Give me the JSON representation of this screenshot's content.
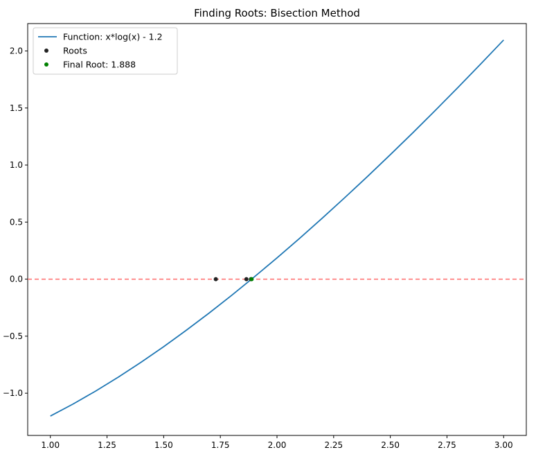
{
  "chart_data": {
    "type": "line",
    "title": "Finding Roots: Bisection Method",
    "xlabel": "",
    "ylabel": "",
    "xlim": [
      0.9,
      3.1
    ],
    "ylim": [
      -1.37,
      2.24
    ],
    "xticks": [
      1.0,
      1.25,
      1.5,
      1.75,
      2.0,
      2.25,
      2.5,
      2.75,
      3.0
    ],
    "xtick_labels": [
      "1.00",
      "1.25",
      "1.50",
      "1.75",
      "2.00",
      "2.25",
      "2.50",
      "2.75",
      "3.00"
    ],
    "yticks": [
      -1.0,
      -0.5,
      0.0,
      0.5,
      1.0,
      1.5,
      2.0
    ],
    "ytick_labels": [
      "−1.0",
      "−0.5",
      "0.0",
      "0.5",
      "1.0",
      "1.5",
      "2.0"
    ],
    "grid": false,
    "legend_position": "top-left",
    "series": [
      {
        "name": "Function: x*log(x) - 1.2",
        "kind": "line",
        "color": "#1f77b4",
        "x": [
          1.0,
          1.1,
          1.2,
          1.3,
          1.4,
          1.5,
          1.6,
          1.7,
          1.8,
          1.9,
          2.0,
          2.1,
          2.2,
          2.3,
          2.4,
          2.5,
          2.6,
          2.7,
          2.8,
          2.9,
          3.0
        ],
        "y": [
          -1.2,
          -1.095,
          -0.981,
          -0.859,
          -0.729,
          -0.592,
          -0.448,
          -0.298,
          -0.142,
          0.02,
          0.186,
          0.358,
          0.535,
          0.716,
          0.901,
          1.091,
          1.284,
          1.482,
          1.683,
          1.888,
          2.096
        ]
      },
      {
        "name": "Roots",
        "kind": "scatter",
        "color": "#222222",
        "x": [
          1.73,
          1.865,
          1.885
        ],
        "y": [
          0,
          0,
          0
        ]
      },
      {
        "name": "Final Root: 1.888",
        "kind": "scatter",
        "color": "#008000",
        "x": [
          1.888
        ],
        "y": [
          0
        ]
      }
    ],
    "reference_lines": [
      {
        "axis": "y",
        "value": 0,
        "color": "#ff6b6b",
        "style": "dashed"
      }
    ]
  }
}
